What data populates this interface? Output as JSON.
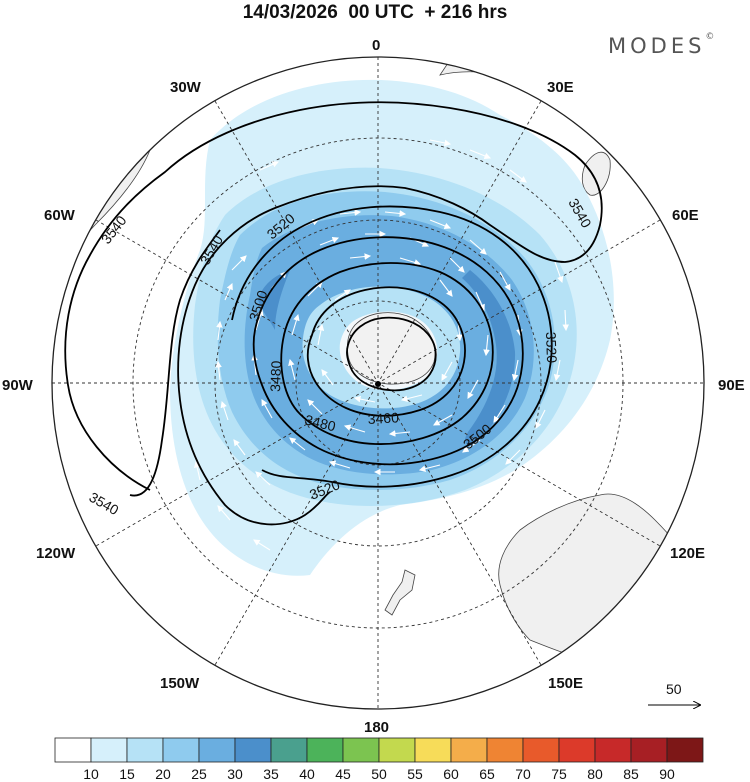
{
  "title": "14/03/2026  00 UTC  + 216 hrs",
  "brand": "MODES",
  "brand_mark": "©",
  "meridian_labels": {
    "m0": "0",
    "m30e": "30E",
    "m60e": "60E",
    "m90e": "90E",
    "m120e": "120E",
    "m150e": "150E",
    "m180": "180",
    "m150w": "150W",
    "m120w": "120W",
    "m90w": "90W",
    "m60w": "60W",
    "m30w": "30W"
  },
  "contour_labels": [
    "3540",
    "3540",
    "3540",
    "3540",
    "3520",
    "3500",
    "3480",
    "3460",
    "3480",
    "3500",
    "3520",
    "3520"
  ],
  "vector_reference": "50",
  "colorbar": {
    "ticks": [
      "10",
      "15",
      "20",
      "25",
      "30",
      "35",
      "40",
      "45",
      "50",
      "55",
      "60",
      "65",
      "70",
      "75",
      "80",
      "85",
      "90"
    ],
    "colors": [
      "#ffffff",
      "#d6f0fb",
      "#b6e2f6",
      "#8fcbee",
      "#6aaee0",
      "#4b8fcb",
      "#4aa08e",
      "#4cb35a",
      "#7cc450",
      "#c3d94e",
      "#f7dc59",
      "#f4ad4a",
      "#ef8433",
      "#e85a2b",
      "#dc3a2a",
      "#c72929",
      "#a71f24",
      "#7d1717"
    ]
  },
  "palette": {
    "land": "#f0f0f0",
    "coast": "#444444",
    "grid": "#333333",
    "contour": "#000000"
  }
}
